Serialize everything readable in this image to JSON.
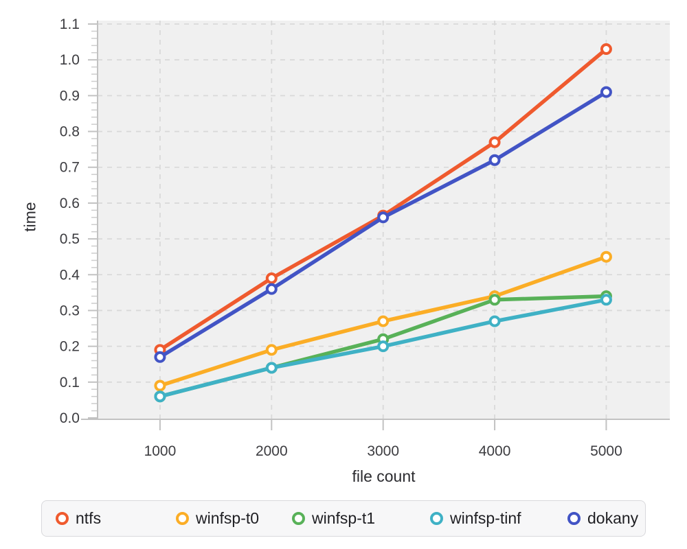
{
  "chart_data": {
    "type": "line",
    "title": "",
    "xlabel": "file count",
    "ylabel": "time",
    "x": [
      1000,
      2000,
      3000,
      4000,
      5000
    ],
    "x_tick_labels": [
      "1000",
      "2000",
      "3000",
      "4000",
      "5000"
    ],
    "y_tick_labels": [
      "0.0",
      "0.1",
      "0.2",
      "0.3",
      "0.4",
      "0.5",
      "0.6",
      "0.7",
      "0.8",
      "0.9",
      "1.0",
      "1.1"
    ],
    "ylim": [
      0.0,
      1.1
    ],
    "y_major_step": 0.1,
    "y_minor_step": 0.02,
    "grid": "dashed",
    "marker_style": "open-circle",
    "legend_position": "bottom",
    "series": [
      {
        "name": "ntfs",
        "color": "#EF5A2E",
        "values": [
          0.19,
          0.39,
          0.565,
          0.77,
          1.03
        ]
      },
      {
        "name": "winfsp-t0",
        "color": "#FBAD26",
        "values": [
          0.09,
          0.19,
          0.27,
          0.34,
          0.45
        ]
      },
      {
        "name": "winfsp-t1",
        "color": "#58B158",
        "values": [
          0.06,
          0.14,
          0.22,
          0.33,
          0.34
        ]
      },
      {
        "name": "winfsp-tinf",
        "color": "#3FB1C5",
        "values": [
          0.06,
          0.14,
          0.2,
          0.27,
          0.33
        ]
      },
      {
        "name": "dokany",
        "color": "#4254C5",
        "values": [
          0.17,
          0.36,
          0.56,
          0.72,
          0.91
        ]
      }
    ],
    "colors": {
      "plot_background": "#F0F0F0",
      "grid": "#D9D9D9",
      "axis": "#C2C2C2",
      "minor_tick": "#CDCDCD",
      "tick_label": "#3C3C40",
      "axis_label": "#2C2C30",
      "legend_text": "#1F1F23",
      "legend_background": "#F7F7F8",
      "legend_border": "#D9D9DC",
      "marker_fill": "#FFFFFF"
    }
  }
}
